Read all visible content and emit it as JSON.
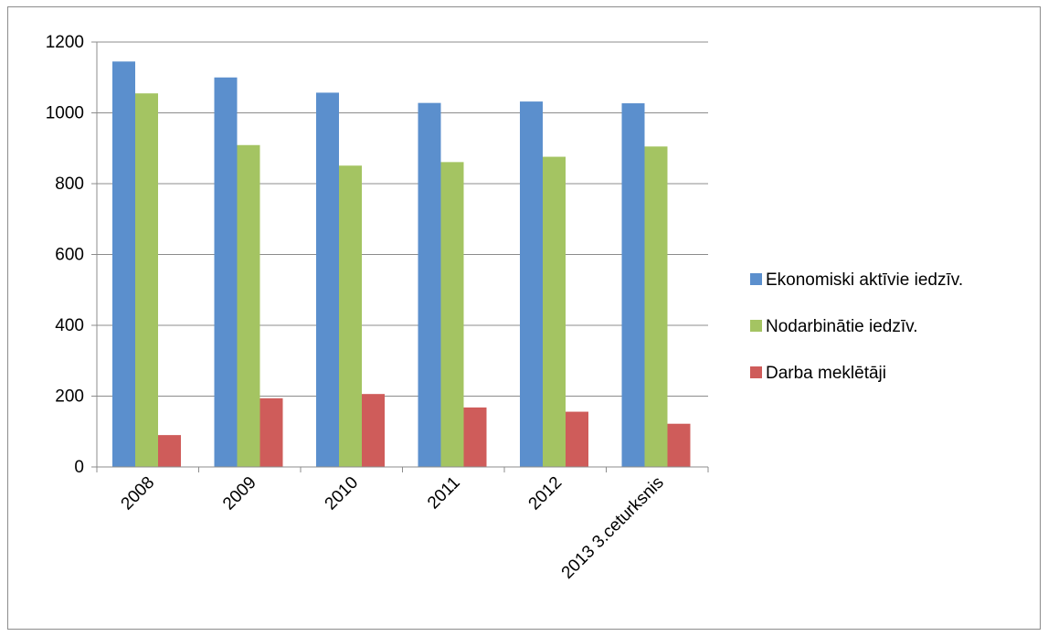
{
  "chart_data": {
    "type": "bar",
    "categories": [
      "2008",
      "2009",
      "2010",
      "2011",
      "2012",
      "2013 3.ceturksnis"
    ],
    "series": [
      {
        "name": "Ekonomiski aktīvie iedzīv.",
        "values": [
          1145,
          1100,
          1057,
          1028,
          1032,
          1027
        ],
        "color": "#5b8fcd"
      },
      {
        "name": "Nodarbinātie iedzīv.",
        "values": [
          1055,
          909,
          851,
          861,
          876,
          905
        ],
        "color": "#a4c462"
      },
      {
        "name": "Darba meklētāji",
        "values": [
          90,
          194,
          206,
          168,
          156,
          122
        ],
        "color": "#cf5c5a"
      }
    ],
    "yticks": [
      "0",
      "200",
      "400",
      "600",
      "800",
      "1000",
      "1200"
    ],
    "ylim": [
      0,
      1200
    ],
    "grid": true,
    "legend_position": "right",
    "title": "",
    "xlabel": "",
    "ylabel": ""
  }
}
